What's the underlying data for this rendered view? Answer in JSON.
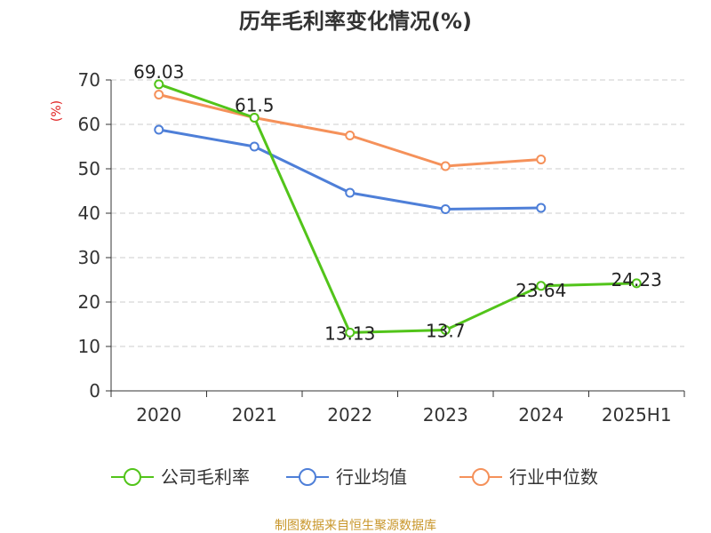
{
  "chart_data": {
    "type": "line",
    "title": "历年毛利率变化情况(%)",
    "ylabel": "(%)",
    "xlabel": "",
    "categories": [
      "2020",
      "2021",
      "2022",
      "2023",
      "2024",
      "2025H1"
    ],
    "ylim": [
      0,
      70
    ],
    "yticks": [
      0,
      10,
      20,
      30,
      40,
      50,
      60,
      70
    ],
    "grid": true,
    "legend_position": "bottom",
    "series": [
      {
        "name": "公司毛利率",
        "color": "#52c41a",
        "values": [
          69.03,
          61.5,
          13.13,
          13.7,
          23.64,
          24.23
        ],
        "labels": [
          "69.03",
          "61.5",
          "13.13",
          "13.7",
          "23.64",
          "24.23"
        ]
      },
      {
        "name": "行业均值",
        "color": "#4e7fd8",
        "values": [
          58.8,
          55.0,
          44.6,
          40.9,
          41.2,
          null
        ]
      },
      {
        "name": "行业中位数",
        "color": "#f5915a",
        "values": [
          66.7,
          61.5,
          57.5,
          50.6,
          52.1,
          null
        ]
      }
    ]
  },
  "footer": {
    "source": "制图数据来自恒生聚源数据库"
  }
}
